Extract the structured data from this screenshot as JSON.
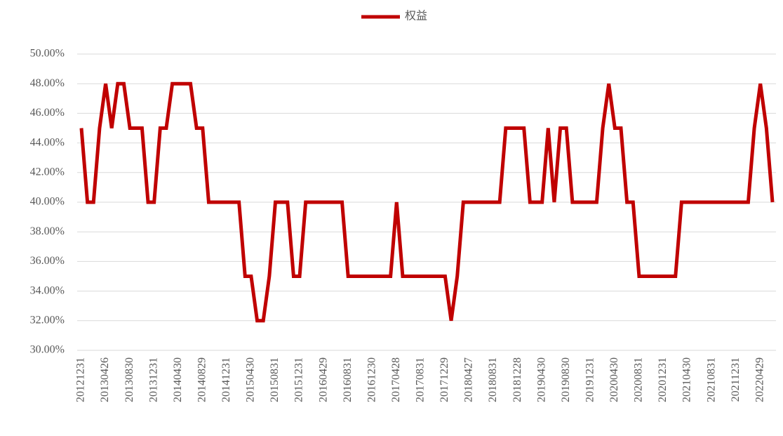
{
  "chart_data": {
    "type": "line",
    "categories": [
      "20121231",
      null,
      null,
      null,
      "20130426",
      null,
      null,
      null,
      "20130830",
      null,
      null,
      null,
      "20131231",
      null,
      null,
      null,
      "20140430",
      null,
      null,
      null,
      "20140829",
      null,
      null,
      null,
      "20141231",
      null,
      null,
      null,
      "20150430",
      null,
      null,
      null,
      "20150831",
      null,
      null,
      null,
      "20151231",
      null,
      null,
      null,
      "20160429",
      null,
      null,
      null,
      "20160831",
      null,
      null,
      null,
      "20161230",
      null,
      null,
      null,
      "20170428",
      null,
      null,
      null,
      "20170831",
      null,
      null,
      null,
      "20171229",
      null,
      null,
      null,
      "20180427",
      null,
      null,
      null,
      "20180831",
      null,
      null,
      null,
      "20181228",
      null,
      null,
      null,
      "20190430",
      null,
      null,
      null,
      "20190830",
      null,
      null,
      null,
      "20191231",
      null,
      null,
      null,
      "20200430",
      null,
      null,
      null,
      "20200831",
      null,
      null,
      null,
      "20201231",
      null,
      null,
      null,
      "20210430",
      null,
      null,
      null,
      "20210831",
      null,
      null,
      null,
      "20211231",
      null,
      null,
      null,
      "20220429",
      null,
      null
    ],
    "series": [
      {
        "name": "权益",
        "color": "#c00000",
        "values": [
          45,
          40,
          40,
          45,
          48,
          45,
          48,
          48,
          45,
          45,
          45,
          40,
          40,
          45,
          45,
          48,
          48,
          48,
          48,
          45,
          45,
          40,
          40,
          40,
          40,
          40,
          40,
          35,
          35,
          32,
          32,
          35,
          40,
          40,
          40,
          35,
          35,
          40,
          40,
          40,
          40,
          40,
          40,
          40,
          35,
          35,
          35,
          35,
          35,
          35,
          35,
          35,
          40,
          35,
          35,
          35,
          35,
          35,
          35,
          35,
          35,
          32,
          35,
          40,
          40,
          40,
          40,
          40,
          40,
          40,
          45,
          45,
          45,
          45,
          40,
          40,
          40,
          45,
          40,
          45,
          45,
          40,
          40,
          40,
          40,
          40,
          45,
          48,
          45,
          45,
          40,
          40,
          35,
          35,
          35,
          35,
          35,
          35,
          35,
          40,
          40,
          40,
          40,
          40,
          40,
          40,
          40,
          40,
          40,
          40,
          40,
          45,
          48,
          45,
          40
        ]
      }
    ],
    "ylim": [
      30,
      50
    ],
    "yticks": [
      {
        "value": 30,
        "label": "30.00%"
      },
      {
        "value": 32,
        "label": "32.00%"
      },
      {
        "value": 34,
        "label": "34.00%"
      },
      {
        "value": 36,
        "label": "36.00%"
      },
      {
        "value": 38,
        "label": "38.00%"
      },
      {
        "value": 40,
        "label": "40.00%"
      },
      {
        "value": 42,
        "label": "42.00%"
      },
      {
        "value": 44,
        "label": "44.00%"
      },
      {
        "value": 46,
        "label": "46.00%"
      },
      {
        "value": 48,
        "label": "48.00%"
      },
      {
        "value": 50,
        "label": "50.00%"
      }
    ],
    "grid": true,
    "legend": "top"
  }
}
